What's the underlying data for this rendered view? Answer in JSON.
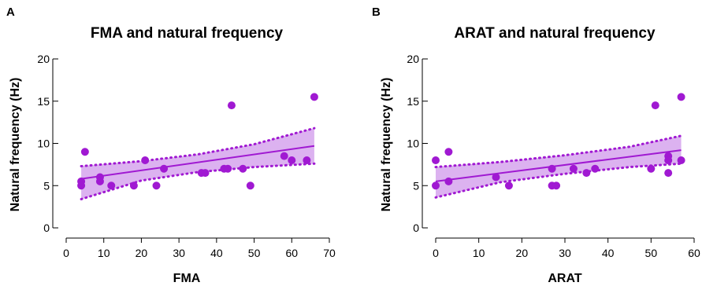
{
  "colors": {
    "accent": "#a019d2",
    "band": "#dcb2f0"
  },
  "chart_data": [
    {
      "type": "scatter",
      "panel": "A",
      "title": "FMA and natural frequency",
      "xlabel": "FMA",
      "ylabel": "Natural frequency (Hz)",
      "xlim": [
        0,
        70
      ],
      "ylim": [
        0,
        20
      ],
      "xticks": [
        0,
        10,
        20,
        30,
        40,
        50,
        60,
        70
      ],
      "yticks": [
        0,
        5,
        10,
        15,
        20
      ],
      "points": [
        {
          "x": 4,
          "y": 5.5
        },
        {
          "x": 4,
          "y": 5.0
        },
        {
          "x": 5,
          "y": 9.0
        },
        {
          "x": 9,
          "y": 6.0
        },
        {
          "x": 9,
          "y": 5.5
        },
        {
          "x": 12,
          "y": 5.0
        },
        {
          "x": 18,
          "y": 5.0
        },
        {
          "x": 21,
          "y": 8.0
        },
        {
          "x": 24,
          "y": 5.0
        },
        {
          "x": 26,
          "y": 7.0
        },
        {
          "x": 36,
          "y": 6.5
        },
        {
          "x": 37,
          "y": 6.5
        },
        {
          "x": 42,
          "y": 7.0
        },
        {
          "x": 43,
          "y": 7.0
        },
        {
          "x": 44,
          "y": 14.5
        },
        {
          "x": 47,
          "y": 7.0
        },
        {
          "x": 49,
          "y": 5.0
        },
        {
          "x": 58,
          "y": 8.5
        },
        {
          "x": 60,
          "y": 8.0
        },
        {
          "x": 64,
          "y": 8.0
        },
        {
          "x": 66,
          "y": 15.5
        }
      ],
      "fit": {
        "x": [
          4,
          66
        ],
        "y": [
          5.8,
          9.7
        ]
      },
      "ci_upper": [
        {
          "x": 4,
          "y": 7.3
        },
        {
          "x": 20,
          "y": 7.9
        },
        {
          "x": 35,
          "y": 8.7
        },
        {
          "x": 50,
          "y": 9.9
        },
        {
          "x": 66,
          "y": 11.8
        }
      ],
      "ci_lower": [
        {
          "x": 4,
          "y": 3.4
        },
        {
          "x": 20,
          "y": 5.6
        },
        {
          "x": 35,
          "y": 6.6
        },
        {
          "x": 50,
          "y": 7.2
        },
        {
          "x": 66,
          "y": 7.6
        }
      ]
    },
    {
      "type": "scatter",
      "panel": "B",
      "title": "ARAT and natural frequency",
      "xlabel": "ARAT",
      "ylabel": "Natural frequency (Hz)",
      "xlim": [
        0,
        60
      ],
      "ylim": [
        0,
        20
      ],
      "xticks": [
        0,
        10,
        20,
        30,
        40,
        50,
        60
      ],
      "yticks": [
        0,
        5,
        10,
        15,
        20
      ],
      "points": [
        {
          "x": 0,
          "y": 8.0
        },
        {
          "x": 0,
          "y": 5.0
        },
        {
          "x": 3,
          "y": 9.0
        },
        {
          "x": 3,
          "y": 5.5
        },
        {
          "x": 14,
          "y": 6.0
        },
        {
          "x": 17,
          "y": 5.0
        },
        {
          "x": 27,
          "y": 7.0
        },
        {
          "x": 27,
          "y": 5.0
        },
        {
          "x": 28,
          "y": 5.0
        },
        {
          "x": 32,
          "y": 7.0
        },
        {
          "x": 35,
          "y": 6.5
        },
        {
          "x": 37,
          "y": 7.0
        },
        {
          "x": 50,
          "y": 7.0
        },
        {
          "x": 51,
          "y": 14.5
        },
        {
          "x": 54,
          "y": 8.5
        },
        {
          "x": 54,
          "y": 8.0
        },
        {
          "x": 54,
          "y": 6.5
        },
        {
          "x": 57,
          "y": 15.5
        },
        {
          "x": 57,
          "y": 8.0
        }
      ],
      "fit": {
        "x": [
          0,
          57
        ],
        "y": [
          5.5,
          9.2
        ]
      },
      "ci_upper": [
        {
          "x": 0,
          "y": 7.2
        },
        {
          "x": 15,
          "y": 7.8
        },
        {
          "x": 30,
          "y": 8.6
        },
        {
          "x": 45,
          "y": 9.6
        },
        {
          "x": 57,
          "y": 10.9
        }
      ],
      "ci_lower": [
        {
          "x": 0,
          "y": 3.6
        },
        {
          "x": 15,
          "y": 5.4
        },
        {
          "x": 30,
          "y": 6.4
        },
        {
          "x": 45,
          "y": 7.2
        },
        {
          "x": 57,
          "y": 7.6
        }
      ]
    }
  ]
}
